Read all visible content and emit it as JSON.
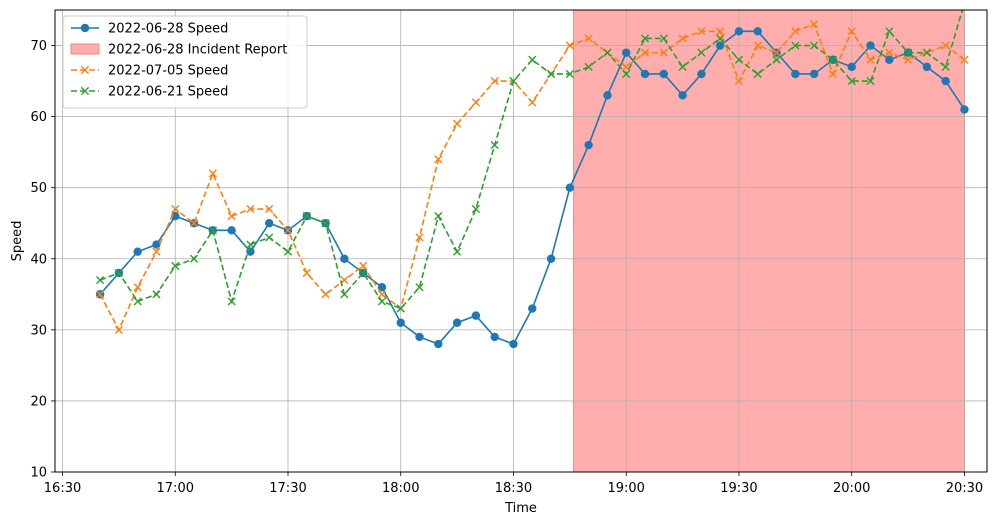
{
  "chart_data": {
    "type": "line",
    "title": "",
    "xlabel": "Time",
    "ylabel": "Speed",
    "x_ticks": [
      "16:30",
      "17:00",
      "17:30",
      "18:00",
      "18:30",
      "19:00",
      "19:30",
      "20:00",
      "20:30"
    ],
    "y_ticks": [
      10,
      20,
      30,
      40,
      50,
      60,
      70
    ],
    "xlim": [
      "16:28",
      "20:36"
    ],
    "ylim": [
      10,
      75
    ],
    "grid": true,
    "legend_position": "top-left",
    "shaded_region": {
      "name": "2022-06-28 Incident Report",
      "start": "18:46",
      "end": "20:30",
      "color": "#ff9999"
    },
    "series": [
      {
        "name": "2022-06-28 Speed",
        "color": "#1f77b4",
        "style": "solid",
        "marker": "circle",
        "points": [
          [
            "16:40",
            35
          ],
          [
            "16:45",
            38
          ],
          [
            "16:50",
            41
          ],
          [
            "16:55",
            42
          ],
          [
            "17:00",
            46
          ],
          [
            "17:05",
            45
          ],
          [
            "17:10",
            44
          ],
          [
            "17:15",
            44
          ],
          [
            "17:20",
            41
          ],
          [
            "17:25",
            45
          ],
          [
            "17:30",
            44
          ],
          [
            "17:35",
            46
          ],
          [
            "17:40",
            45
          ],
          [
            "17:45",
            40
          ],
          [
            "17:50",
            38
          ],
          [
            "17:55",
            36
          ],
          [
            "18:00",
            31
          ],
          [
            "18:05",
            29
          ],
          [
            "18:10",
            28
          ],
          [
            "18:15",
            31
          ],
          [
            "18:20",
            32
          ],
          [
            "18:25",
            29
          ],
          [
            "18:30",
            28
          ],
          [
            "18:35",
            33
          ],
          [
            "18:40",
            40
          ],
          [
            "18:45",
            50
          ],
          [
            "18:50",
            56
          ],
          [
            "18:55",
            63
          ],
          [
            "19:00",
            69
          ],
          [
            "19:05",
            66
          ],
          [
            "19:10",
            66
          ],
          [
            "19:15",
            63
          ],
          [
            "19:20",
            66
          ],
          [
            "19:25",
            70
          ],
          [
            "19:30",
            72
          ],
          [
            "19:35",
            72
          ],
          [
            "19:40",
            69
          ],
          [
            "19:45",
            66
          ],
          [
            "19:50",
            66
          ],
          [
            "19:55",
            68
          ],
          [
            "20:00",
            67
          ],
          [
            "20:05",
            70
          ],
          [
            "20:10",
            68
          ],
          [
            "20:15",
            69
          ],
          [
            "20:20",
            67
          ],
          [
            "20:25",
            65
          ],
          [
            "20:30",
            61
          ]
        ]
      },
      {
        "name": "2022-07-05 Speed",
        "color": "#ff7f0e",
        "style": "dashed",
        "marker": "x",
        "points": [
          [
            "16:40",
            35
          ],
          [
            "16:45",
            30
          ],
          [
            "16:50",
            36
          ],
          [
            "16:55",
            41
          ],
          [
            "17:00",
            47
          ],
          [
            "17:05",
            45
          ],
          [
            "17:10",
            52
          ],
          [
            "17:15",
            46
          ],
          [
            "17:20",
            47
          ],
          [
            "17:25",
            47
          ],
          [
            "17:30",
            44
          ],
          [
            "17:35",
            38
          ],
          [
            "17:40",
            35
          ],
          [
            "17:45",
            37
          ],
          [
            "17:50",
            39
          ],
          [
            "17:55",
            35
          ],
          [
            "18:00",
            33
          ],
          [
            "18:05",
            43
          ],
          [
            "18:10",
            54
          ],
          [
            "18:15",
            59
          ],
          [
            "18:20",
            62
          ],
          [
            "18:25",
            65
          ],
          [
            "18:30",
            65
          ],
          [
            "18:35",
            62
          ],
          [
            "18:40",
            66
          ],
          [
            "18:45",
            70
          ],
          [
            "18:50",
            71
          ],
          [
            "18:55",
            69
          ],
          [
            "19:00",
            67
          ],
          [
            "19:05",
            69
          ],
          [
            "19:10",
            69
          ],
          [
            "19:15",
            71
          ],
          [
            "19:20",
            72
          ],
          [
            "19:25",
            72
          ],
          [
            "19:30",
            65
          ],
          [
            "19:35",
            70
          ],
          [
            "19:40",
            69
          ],
          [
            "19:45",
            72
          ],
          [
            "19:50",
            73
          ],
          [
            "19:55",
            66
          ],
          [
            "20:00",
            72
          ],
          [
            "20:05",
            68
          ],
          [
            "20:10",
            69
          ],
          [
            "20:15",
            68
          ],
          [
            "20:20",
            69
          ],
          [
            "20:25",
            70
          ],
          [
            "20:30",
            68
          ]
        ]
      },
      {
        "name": "2022-06-21 Speed",
        "color": "#2ca02c",
        "style": "dashed",
        "marker": "x",
        "points": [
          [
            "16:40",
            37
          ],
          [
            "16:45",
            38
          ],
          [
            "16:50",
            34
          ],
          [
            "16:55",
            35
          ],
          [
            "17:00",
            39
          ],
          [
            "17:05",
            40
          ],
          [
            "17:10",
            44
          ],
          [
            "17:15",
            34
          ],
          [
            "17:20",
            42
          ],
          [
            "17:25",
            43
          ],
          [
            "17:30",
            41
          ],
          [
            "17:35",
            46
          ],
          [
            "17:40",
            45
          ],
          [
            "17:45",
            35
          ],
          [
            "17:50",
            38
          ],
          [
            "17:55",
            34
          ],
          [
            "18:00",
            33
          ],
          [
            "18:05",
            36
          ],
          [
            "18:10",
            46
          ],
          [
            "18:15",
            41
          ],
          [
            "18:20",
            47
          ],
          [
            "18:25",
            56
          ],
          [
            "18:30",
            65
          ],
          [
            "18:35",
            68
          ],
          [
            "18:40",
            66
          ],
          [
            "18:45",
            66
          ],
          [
            "18:50",
            67
          ],
          [
            "18:55",
            69
          ],
          [
            "19:00",
            66
          ],
          [
            "19:05",
            71
          ],
          [
            "19:10",
            71
          ],
          [
            "19:15",
            67
          ],
          [
            "19:20",
            69
          ],
          [
            "19:25",
            71
          ],
          [
            "19:30",
            68
          ],
          [
            "19:35",
            66
          ],
          [
            "19:40",
            68
          ],
          [
            "19:45",
            70
          ],
          [
            "19:50",
            70
          ],
          [
            "19:55",
            68
          ],
          [
            "20:00",
            65
          ],
          [
            "20:05",
            65
          ],
          [
            "20:10",
            72
          ],
          [
            "20:15",
            69
          ],
          [
            "20:20",
            69
          ],
          [
            "20:25",
            67
          ],
          [
            "20:30",
            76
          ]
        ]
      }
    ]
  }
}
